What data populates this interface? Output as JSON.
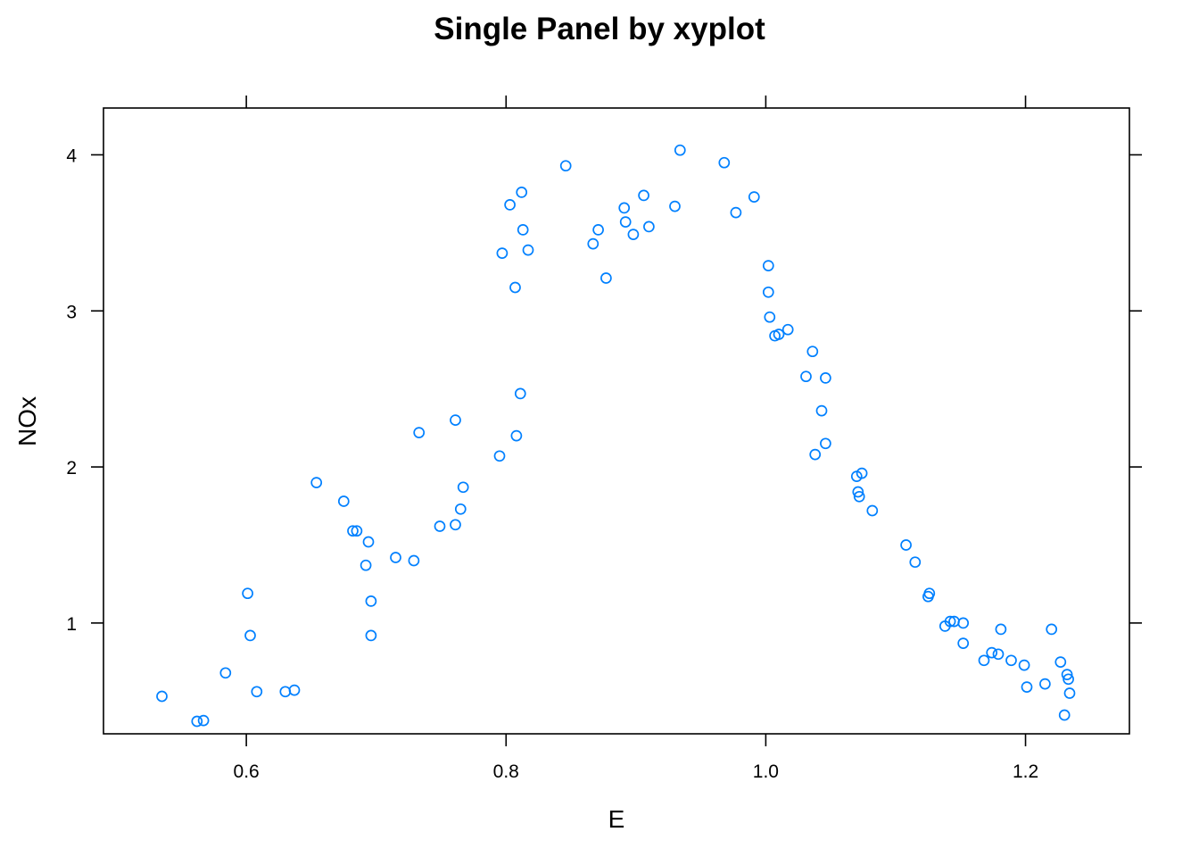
{
  "chart_data": {
    "type": "scatter",
    "title": "Single Panel by xyplot",
    "xlabel": "E",
    "ylabel": "NOx",
    "xlim": [
      0.49,
      1.28
    ],
    "ylim": [
      0.29,
      4.3
    ],
    "x_ticks": [
      0.6,
      0.8,
      1.0,
      1.2
    ],
    "x_tick_labels": [
      "0.6",
      "0.8",
      "1.0",
      "1.2"
    ],
    "y_ticks": [
      1,
      2,
      3,
      4
    ],
    "y_tick_labels": [
      "1",
      "2",
      "3",
      "4"
    ],
    "grid": false,
    "marker": "open-circle",
    "color": "#0080ff",
    "points": [
      [
        0.535,
        0.53
      ],
      [
        0.562,
        0.37
      ],
      [
        0.567,
        0.375
      ],
      [
        0.584,
        0.68
      ],
      [
        0.601,
        1.19
      ],
      [
        0.603,
        0.92
      ],
      [
        0.608,
        0.56
      ],
      [
        0.63,
        0.56
      ],
      [
        0.637,
        0.57
      ],
      [
        0.654,
        1.9
      ],
      [
        0.675,
        1.78
      ],
      [
        0.682,
        1.59
      ],
      [
        0.685,
        1.59
      ],
      [
        0.692,
        1.37
      ],
      [
        0.694,
        1.52
      ],
      [
        0.696,
        1.14
      ],
      [
        0.696,
        0.92
      ],
      [
        0.715,
        1.42
      ],
      [
        0.729,
        1.4
      ],
      [
        0.733,
        2.22
      ],
      [
        0.749,
        1.62
      ],
      [
        0.761,
        1.63
      ],
      [
        0.761,
        2.3
      ],
      [
        0.765,
        1.73
      ],
      [
        0.767,
        1.87
      ],
      [
        0.795,
        2.07
      ],
      [
        0.797,
        3.37
      ],
      [
        0.803,
        3.68
      ],
      [
        0.807,
        3.15
      ],
      [
        0.808,
        2.2
      ],
      [
        0.811,
        2.47
      ],
      [
        0.812,
        3.76
      ],
      [
        0.813,
        3.52
      ],
      [
        0.817,
        3.39
      ],
      [
        0.846,
        3.93
      ],
      [
        0.867,
        3.43
      ],
      [
        0.871,
        3.52
      ],
      [
        0.877,
        3.21
      ],
      [
        0.891,
        3.66
      ],
      [
        0.892,
        3.57
      ],
      [
        0.898,
        3.49
      ],
      [
        0.906,
        3.74
      ],
      [
        0.91,
        3.54
      ],
      [
        0.93,
        3.67
      ],
      [
        0.934,
        4.03
      ],
      [
        0.968,
        3.95
      ],
      [
        0.977,
        3.63
      ],
      [
        0.991,
        3.73
      ],
      [
        1.002,
        3.29
      ],
      [
        1.002,
        3.12
      ],
      [
        1.003,
        2.96
      ],
      [
        1.007,
        2.84
      ],
      [
        1.01,
        2.85
      ],
      [
        1.017,
        2.88
      ],
      [
        1.031,
        2.58
      ],
      [
        1.036,
        2.74
      ],
      [
        1.038,
        2.08
      ],
      [
        1.043,
        2.36
      ],
      [
        1.046,
        2.57
      ],
      [
        1.046,
        2.15
      ],
      [
        1.07,
        1.94
      ],
      [
        1.071,
        1.84
      ],
      [
        1.072,
        1.81
      ],
      [
        1.074,
        1.96
      ],
      [
        1.082,
        1.72
      ],
      [
        1.108,
        1.5
      ],
      [
        1.115,
        1.39
      ],
      [
        1.125,
        1.17
      ],
      [
        1.126,
        1.19
      ],
      [
        1.138,
        0.98
      ],
      [
        1.142,
        1.01
      ],
      [
        1.145,
        1.01
      ],
      [
        1.152,
        1.0
      ],
      [
        1.152,
        0.87
      ],
      [
        1.168,
        0.76
      ],
      [
        1.174,
        0.81
      ],
      [
        1.179,
        0.8
      ],
      [
        1.181,
        0.96
      ],
      [
        1.189,
        0.76
      ],
      [
        1.199,
        0.73
      ],
      [
        1.201,
        0.59
      ],
      [
        1.215,
        0.61
      ],
      [
        1.22,
        0.96
      ],
      [
        1.227,
        0.75
      ],
      [
        1.23,
        0.41
      ],
      [
        1.232,
        0.67
      ],
      [
        1.233,
        0.64
      ],
      [
        1.234,
        0.55
      ]
    ]
  }
}
